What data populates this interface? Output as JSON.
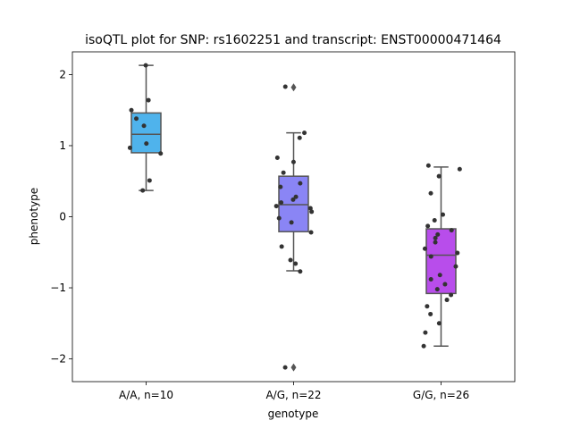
{
  "chart_data": {
    "type": "box",
    "title": "isoQTL plot for SNP: rs1602251 and transcript: ENST00000471464",
    "xlabel": "genotype",
    "ylabel": "phenotype",
    "ylim": [
      -2.32,
      2.32
    ],
    "yticks": [
      -2,
      -1,
      0,
      1,
      2
    ],
    "ytick_labels": [
      "−2",
      "−1",
      "0",
      "1",
      "2"
    ],
    "grid": false,
    "legend": "none",
    "categories": [
      "A/A, n=10",
      "A/G, n=22",
      "G/G, n=26"
    ],
    "colors": [
      "#4fb3ec",
      "#8a85f5",
      "#b84deb"
    ],
    "boxes": [
      {
        "q1": 0.9,
        "median": 1.16,
        "q3": 1.46,
        "whisker_low": 0.37,
        "whisker_high": 2.13,
        "outliers": []
      },
      {
        "q1": -0.21,
        "median": 0.17,
        "q3": 0.57,
        "whisker_low": -0.76,
        "whisker_high": 1.18,
        "outliers": [
          1.82,
          -2.12
        ]
      },
      {
        "q1": -1.08,
        "median": -0.54,
        "q3": -0.17,
        "whisker_low": -1.82,
        "whisker_high": 0.7,
        "outliers": []
      }
    ],
    "points": [
      [
        2.13,
        1.64,
        1.5,
        1.38,
        1.28,
        1.03,
        0.97,
        0.89,
        0.51,
        0.37
      ],
      [
        1.83,
        1.18,
        1.11,
        0.83,
        0.77,
        0.62,
        0.47,
        0.42,
        0.28,
        0.24,
        0.2,
        0.15,
        0.12,
        0.07,
        -0.02,
        -0.08,
        -0.22,
        -0.42,
        -0.61,
        -0.66,
        -0.77,
        -2.12
      ],
      [
        0.72,
        0.67,
        0.57,
        0.33,
        0.03,
        -0.05,
        -0.13,
        -0.19,
        -0.3,
        -0.36,
        -0.45,
        -0.51,
        -0.56,
        -0.7,
        -0.82,
        -0.88,
        -0.95,
        -1.02,
        -1.1,
        -1.17,
        -1.26,
        -1.37,
        -1.5,
        -1.63,
        -1.82,
        -0.25
      ]
    ]
  }
}
